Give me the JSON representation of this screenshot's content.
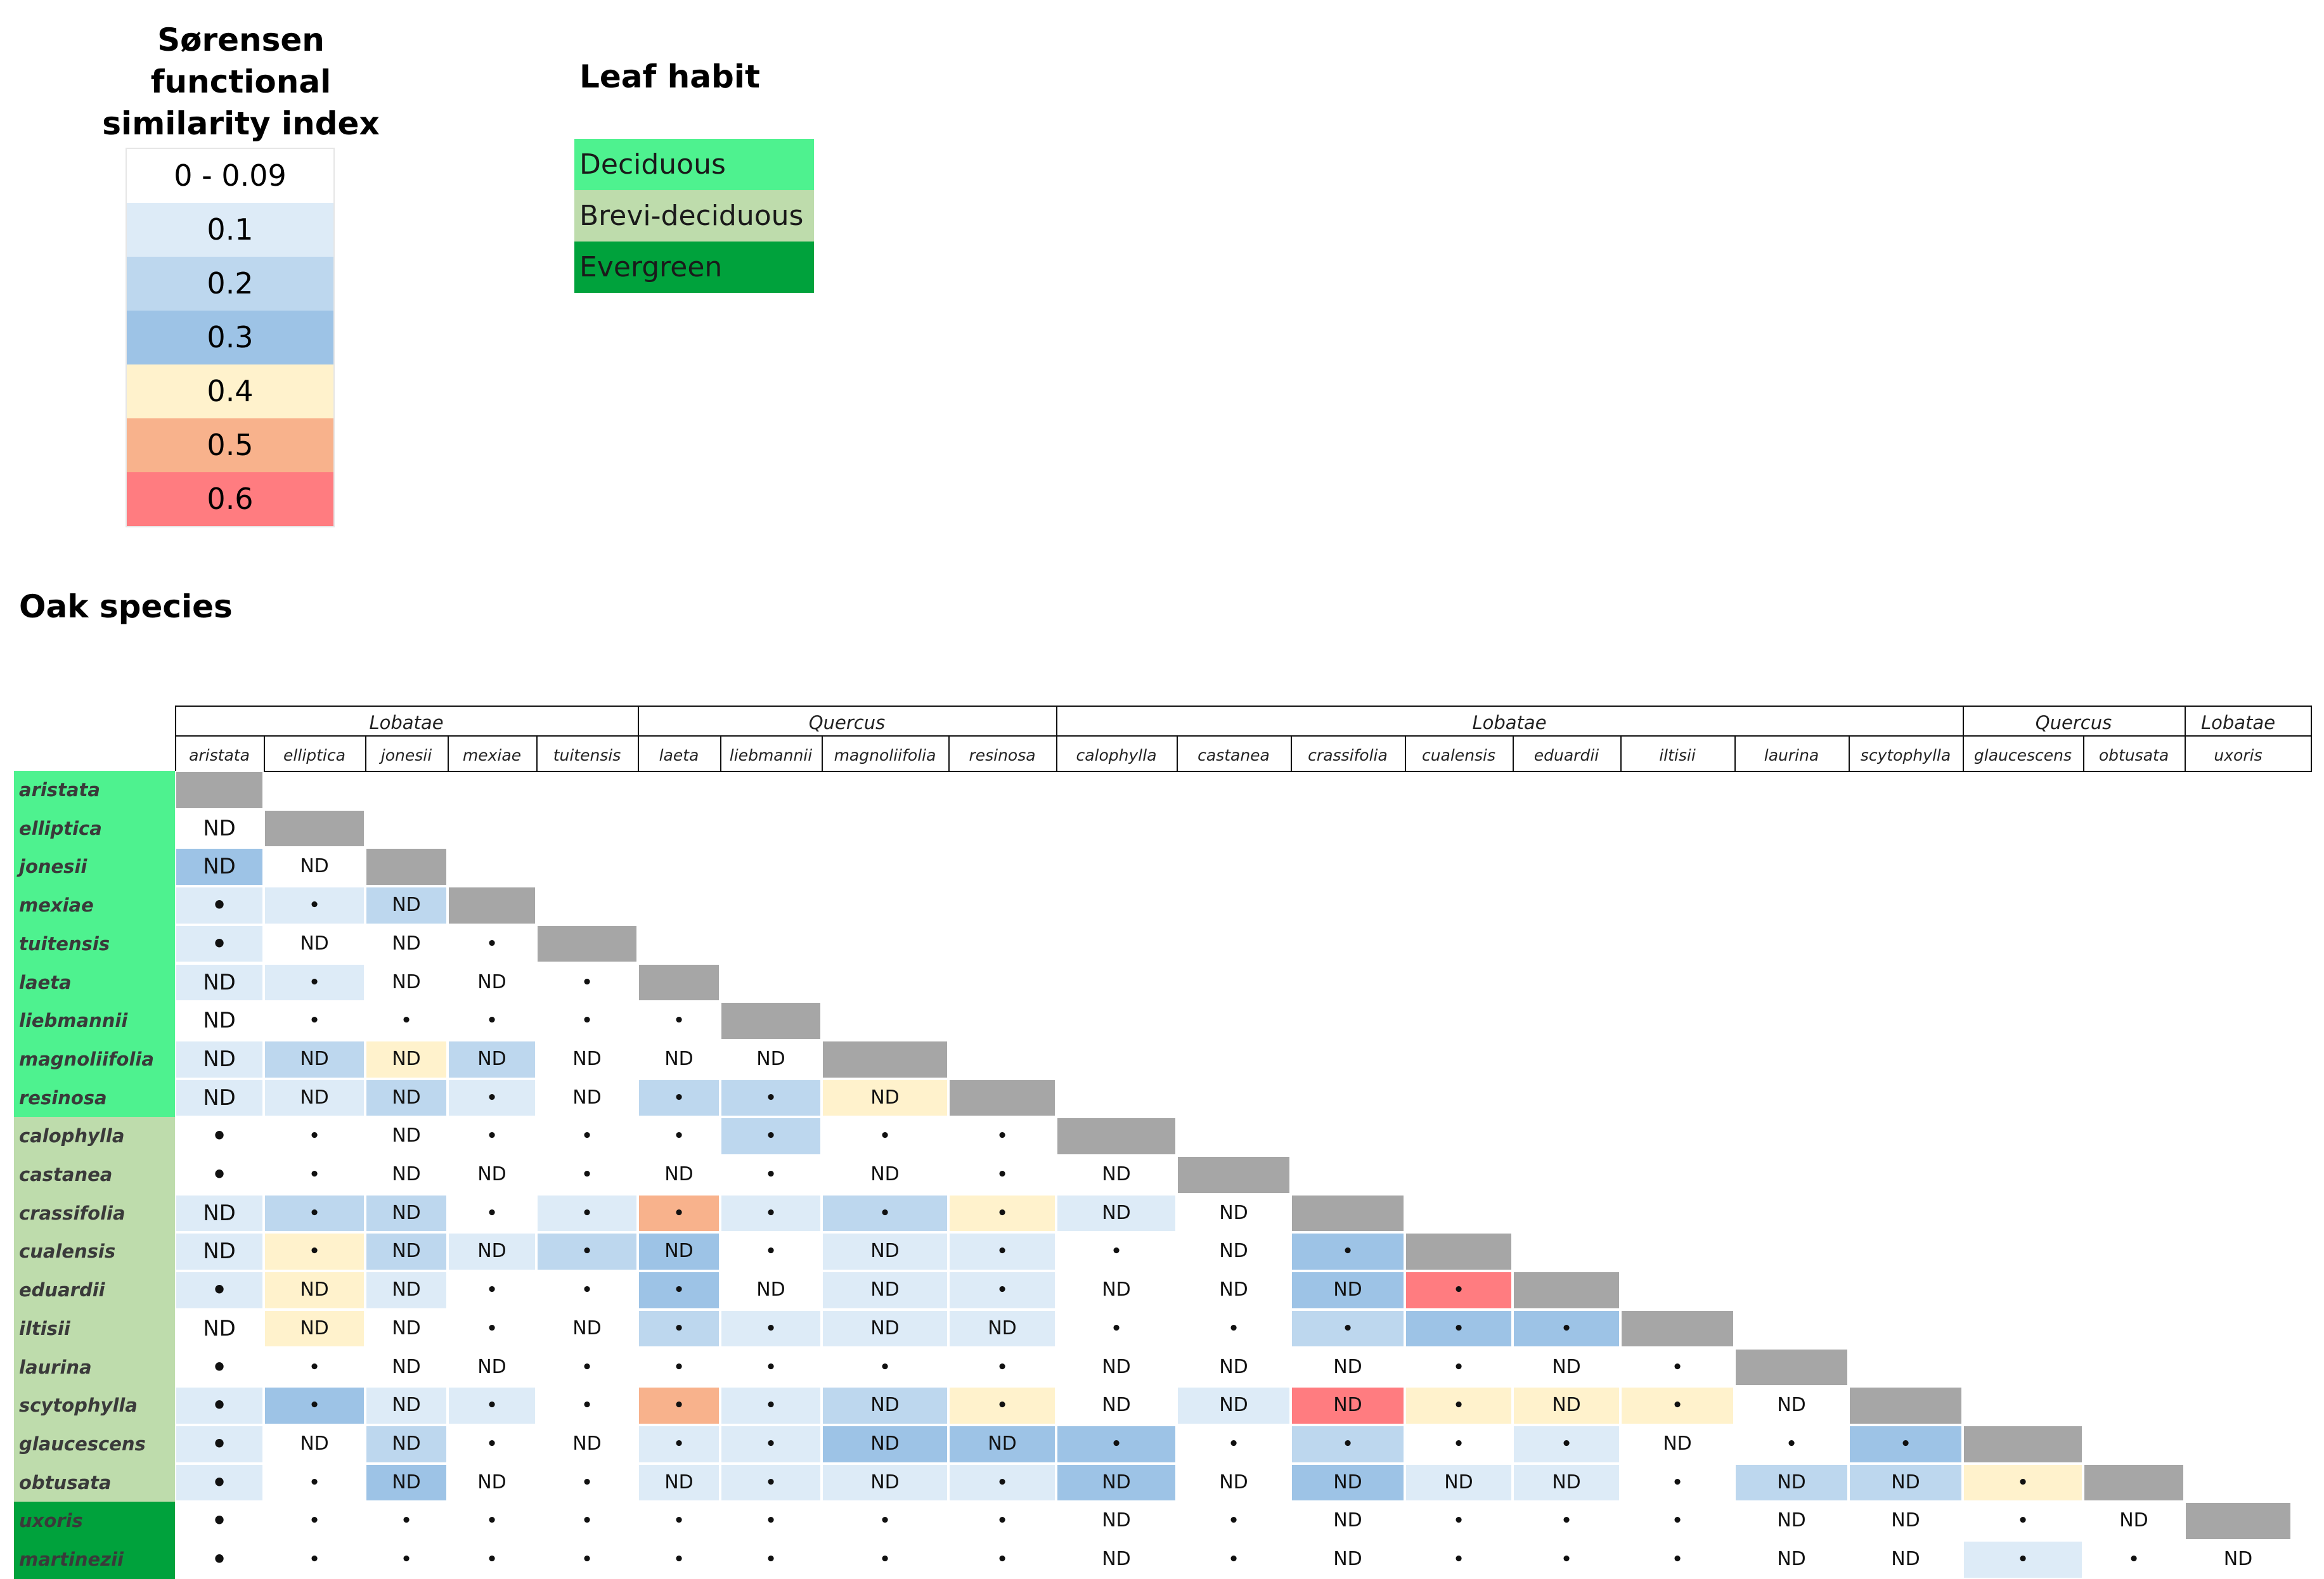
{
  "similarity_legend": {
    "title": "Sørensen functional similarity index",
    "items": [
      {
        "label": "0 - 0.09",
        "color": "#ffffff"
      },
      {
        "label": "0.1",
        "color": "#ddebf7"
      },
      {
        "label": "0.2",
        "color": "#bdd7ee"
      },
      {
        "label": "0.3",
        "color": "#9dc3e6"
      },
      {
        "label": "0.4",
        "color": "#fff2cc"
      },
      {
        "label": "0.5",
        "color": "#f8b28c"
      },
      {
        "label": "0.6",
        "color": "#ff7c80"
      }
    ]
  },
  "habit_legend": {
    "title": "Leaf habit",
    "items": [
      {
        "label": "Deciduous",
        "color": "#4ef28f"
      },
      {
        "label": "Brevi-deciduous",
        "color": "#bedcac"
      },
      {
        "label": "Evergreen",
        "color": "#00a23c"
      }
    ]
  },
  "oak_title": "Oak species",
  "chart_data": {
    "type": "heatmap",
    "column_groups": [
      {
        "label": "Lobatae",
        "span": 5
      },
      {
        "label": "Quercus",
        "span": 4
      },
      {
        "label": "Lobatae",
        "span": 8
      },
      {
        "label": "Quercus",
        "span": 2
      },
      {
        "label": "Lobatae",
        "span": 1
      }
    ],
    "columns": [
      "aristata",
      "elliptica",
      "jonesii",
      "mexiae",
      "tuitensis",
      "laeta",
      "liebmannii",
      "magnoliifolia",
      "resinosa",
      "calophylla",
      "castanea",
      "crassifolia",
      "cualensis",
      "eduardii",
      "iltisii",
      "laurina",
      "scytophylla",
      "glaucescens",
      "obtusata",
      "uxoris"
    ],
    "rows": [
      {
        "name": "aristata",
        "habit": "Deciduous"
      },
      {
        "name": "elliptica",
        "habit": "Deciduous"
      },
      {
        "name": "jonesii",
        "habit": "Deciduous"
      },
      {
        "name": "mexiae",
        "habit": "Deciduous"
      },
      {
        "name": "tuitensis",
        "habit": "Deciduous"
      },
      {
        "name": "laeta",
        "habit": "Deciduous"
      },
      {
        "name": "liebmannii",
        "habit": "Deciduous"
      },
      {
        "name": "magnoliifolia",
        "habit": "Deciduous"
      },
      {
        "name": "resinosa",
        "habit": "Deciduous"
      },
      {
        "name": "calophylla",
        "habit": "Brevi-deciduous"
      },
      {
        "name": "castanea",
        "habit": "Brevi-deciduous"
      },
      {
        "name": "crassifolia",
        "habit": "Brevi-deciduous"
      },
      {
        "name": "cualensis",
        "habit": "Brevi-deciduous"
      },
      {
        "name": "eduardii",
        "habit": "Brevi-deciduous"
      },
      {
        "name": "iltisii",
        "habit": "Brevi-deciduous"
      },
      {
        "name": "laurina",
        "habit": "Brevi-deciduous"
      },
      {
        "name": "scytophylla",
        "habit": "Brevi-deciduous"
      },
      {
        "name": "glaucescens",
        "habit": "Brevi-deciduous"
      },
      {
        "name": "obtusata",
        "habit": "Brevi-deciduous"
      },
      {
        "name": "uxoris",
        "habit": "Evergreen"
      },
      {
        "name": "martinezii",
        "habit": "Evergreen"
      }
    ],
    "cells": [
      [],
      [
        [
          0,
          "ND"
        ]
      ],
      [
        [
          3,
          "ND"
        ],
        [
          0,
          "ND"
        ]
      ],
      [
        [
          1,
          "•"
        ],
        [
          1,
          "•"
        ],
        [
          2,
          "ND"
        ]
      ],
      [
        [
          1,
          "•"
        ],
        [
          0,
          "ND"
        ],
        [
          0,
          "ND"
        ],
        [
          0,
          "•"
        ]
      ],
      [
        [
          1,
          "ND"
        ],
        [
          1,
          "•"
        ],
        [
          0,
          "ND"
        ],
        [
          0,
          "ND"
        ],
        [
          0,
          "•"
        ]
      ],
      [
        [
          0,
          "ND"
        ],
        [
          0,
          "•"
        ],
        [
          0,
          "•"
        ],
        [
          0,
          "•"
        ],
        [
          0,
          "•"
        ],
        [
          0,
          "•"
        ]
      ],
      [
        [
          1,
          "ND"
        ],
        [
          2,
          "ND"
        ],
        [
          4,
          "ND"
        ],
        [
          2,
          "ND"
        ],
        [
          0,
          "ND"
        ],
        [
          0,
          "ND"
        ],
        [
          0,
          "ND"
        ]
      ],
      [
        [
          1,
          "ND"
        ],
        [
          1,
          "ND"
        ],
        [
          2,
          "ND"
        ],
        [
          1,
          "•"
        ],
        [
          0,
          "ND"
        ],
        [
          2,
          "•"
        ],
        [
          2,
          "•"
        ],
        [
          4,
          "ND"
        ]
      ],
      [
        [
          0,
          "•"
        ],
        [
          0,
          "•"
        ],
        [
          0,
          "ND"
        ],
        [
          0,
          "•"
        ],
        [
          0,
          "•"
        ],
        [
          0,
          "•"
        ],
        [
          2,
          "•"
        ],
        [
          0,
          "•"
        ],
        [
          0,
          "•"
        ]
      ],
      [
        [
          0,
          "•"
        ],
        [
          0,
          "•"
        ],
        [
          0,
          "ND"
        ],
        [
          0,
          "ND"
        ],
        [
          0,
          "•"
        ],
        [
          0,
          "ND"
        ],
        [
          0,
          "•"
        ],
        [
          0,
          "ND"
        ],
        [
          0,
          "•"
        ],
        [
          0,
          "ND"
        ]
      ],
      [
        [
          1,
          "ND"
        ],
        [
          2,
          "•"
        ],
        [
          2,
          "ND"
        ],
        [
          0,
          "•"
        ],
        [
          1,
          "•"
        ],
        [
          5,
          "•"
        ],
        [
          1,
          "•"
        ],
        [
          2,
          "•"
        ],
        [
          4,
          "•"
        ],
        [
          1,
          "ND"
        ],
        [
          0,
          "ND"
        ]
      ],
      [
        [
          1,
          "ND"
        ],
        [
          4,
          "•"
        ],
        [
          2,
          "ND"
        ],
        [
          1,
          "ND"
        ],
        [
          2,
          "•"
        ],
        [
          3,
          "ND"
        ],
        [
          0,
          "•"
        ],
        [
          1,
          "ND"
        ],
        [
          1,
          "•"
        ],
        [
          0,
          "•"
        ],
        [
          0,
          "ND"
        ],
        [
          3,
          "•"
        ]
      ],
      [
        [
          1,
          "•"
        ],
        [
          4,
          "ND"
        ],
        [
          1,
          "ND"
        ],
        [
          0,
          "•"
        ],
        [
          0,
          "•"
        ],
        [
          3,
          "•"
        ],
        [
          0,
          "ND"
        ],
        [
          1,
          "ND"
        ],
        [
          1,
          "•"
        ],
        [
          0,
          "ND"
        ],
        [
          0,
          "ND"
        ],
        [
          3,
          "ND"
        ],
        [
          6,
          "•"
        ]
      ],
      [
        [
          0,
          "ND"
        ],
        [
          4,
          "ND"
        ],
        [
          0,
          "ND"
        ],
        [
          0,
          "•"
        ],
        [
          0,
          "ND"
        ],
        [
          2,
          "•"
        ],
        [
          1,
          "•"
        ],
        [
          1,
          "ND"
        ],
        [
          1,
          "ND"
        ],
        [
          0,
          "•"
        ],
        [
          0,
          "•"
        ],
        [
          2,
          "•"
        ],
        [
          3,
          "•"
        ],
        [
          3,
          "•"
        ]
      ],
      [
        [
          0,
          "•"
        ],
        [
          0,
          "•"
        ],
        [
          0,
          "ND"
        ],
        [
          0,
          "ND"
        ],
        [
          0,
          "•"
        ],
        [
          0,
          "•"
        ],
        [
          0,
          "•"
        ],
        [
          0,
          "•"
        ],
        [
          0,
          "•"
        ],
        [
          0,
          "ND"
        ],
        [
          0,
          "ND"
        ],
        [
          0,
          "ND"
        ],
        [
          0,
          "•"
        ],
        [
          0,
          "ND"
        ],
        [
          0,
          "•"
        ]
      ],
      [
        [
          1,
          "•"
        ],
        [
          3,
          "•"
        ],
        [
          1,
          "ND"
        ],
        [
          1,
          "•"
        ],
        [
          0,
          "•"
        ],
        [
          5,
          "•"
        ],
        [
          1,
          "•"
        ],
        [
          2,
          "ND"
        ],
        [
          4,
          "•"
        ],
        [
          0,
          "ND"
        ],
        [
          1,
          "ND"
        ],
        [
          6,
          "ND"
        ],
        [
          4,
          "•"
        ],
        [
          4,
          "ND"
        ],
        [
          4,
          "•"
        ],
        [
          0,
          "ND"
        ]
      ],
      [
        [
          1,
          "•"
        ],
        [
          0,
          "ND"
        ],
        [
          2,
          "ND"
        ],
        [
          0,
          "•"
        ],
        [
          0,
          "ND"
        ],
        [
          1,
          "•"
        ],
        [
          1,
          "•"
        ],
        [
          3,
          "ND"
        ],
        [
          3,
          "ND"
        ],
        [
          3,
          "•"
        ],
        [
          0,
          "•"
        ],
        [
          2,
          "•"
        ],
        [
          0,
          "•"
        ],
        [
          1,
          "•"
        ],
        [
          0,
          "ND"
        ],
        [
          0,
          "•"
        ],
        [
          3,
          "•"
        ]
      ],
      [
        [
          1,
          "•"
        ],
        [
          0,
          "•"
        ],
        [
          3,
          "ND"
        ],
        [
          0,
          "ND"
        ],
        [
          0,
          "•"
        ],
        [
          1,
          "ND"
        ],
        [
          1,
          "•"
        ],
        [
          1,
          "ND"
        ],
        [
          1,
          "•"
        ],
        [
          3,
          "ND"
        ],
        [
          0,
          "ND"
        ],
        [
          3,
          "ND"
        ],
        [
          1,
          "ND"
        ],
        [
          1,
          "ND"
        ],
        [
          0,
          "•"
        ],
        [
          2,
          "ND"
        ],
        [
          2,
          "ND"
        ],
        [
          4,
          "•"
        ]
      ],
      [
        [
          0,
          "•"
        ],
        [
          0,
          "•"
        ],
        [
          0,
          "•"
        ],
        [
          0,
          "•"
        ],
        [
          0,
          "•"
        ],
        [
          0,
          "•"
        ],
        [
          0,
          "•"
        ],
        [
          0,
          "•"
        ],
        [
          0,
          "•"
        ],
        [
          0,
          "ND"
        ],
        [
          0,
          "•"
        ],
        [
          0,
          "ND"
        ],
        [
          0,
          "•"
        ],
        [
          0,
          "•"
        ],
        [
          0,
          "•"
        ],
        [
          0,
          "ND"
        ],
        [
          0,
          "ND"
        ],
        [
          0,
          "•"
        ],
        [
          0,
          "ND"
        ]
      ],
      [
        [
          0,
          "•"
        ],
        [
          0,
          "•"
        ],
        [
          0,
          "•"
        ],
        [
          0,
          "•"
        ],
        [
          0,
          "•"
        ],
        [
          0,
          "•"
        ],
        [
          0,
          "•"
        ],
        [
          0,
          "•"
        ],
        [
          0,
          "•"
        ],
        [
          0,
          "ND"
        ],
        [
          0,
          "•"
        ],
        [
          0,
          "ND"
        ],
        [
          0,
          "•"
        ],
        [
          0,
          "•"
        ],
        [
          0,
          "•"
        ],
        [
          0,
          "ND"
        ],
        [
          0,
          "ND"
        ],
        [
          1,
          "•"
        ],
        [
          0,
          "•"
        ],
        [
          0,
          "ND"
        ]
      ]
    ]
  }
}
